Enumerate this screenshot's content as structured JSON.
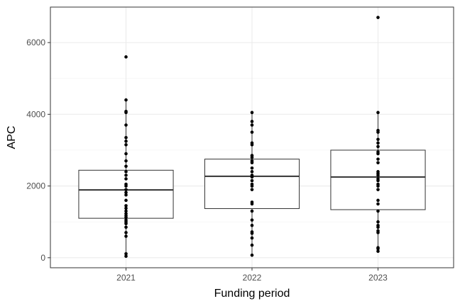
{
  "chart_data": {
    "type": "box",
    "title": "",
    "xlabel": "Funding period",
    "ylabel": "APC",
    "categories": [
      "2021",
      "2022",
      "2023"
    ],
    "ylim": [
      -280,
      6990
    ],
    "yticks": [
      0,
      2000,
      4000,
      6000
    ],
    "grid": true,
    "legend": "none",
    "boxes": [
      {
        "category": "2021",
        "q1": 1100,
        "median": 1890,
        "q3": 2440,
        "whisker_low": 40,
        "whisker_high": 4400
      },
      {
        "category": "2022",
        "q1": 1370,
        "median": 2270,
        "q3": 2750,
        "whisker_low": 70,
        "whisker_high": 4050
      },
      {
        "category": "2023",
        "q1": 1340,
        "median": 2250,
        "q3": 3000,
        "whisker_low": 180,
        "whisker_high": 4050
      }
    ],
    "points": [
      {
        "category": "2021",
        "values": [
          40,
          110,
          600,
          700,
          850,
          950,
          1000,
          1050,
          1120,
          1170,
          1230,
          1300,
          1380,
          1450,
          1600,
          1750,
          1820,
          1900,
          2000,
          2050,
          2200,
          2300,
          2400,
          2550,
          2700,
          2900,
          3150,
          3250,
          3350,
          3700,
          4050,
          4080,
          4400,
          5600
        ]
      },
      {
        "category": "2022",
        "values": [
          70,
          350,
          550,
          680,
          720,
          900,
          1050,
          1300,
          1500,
          1550,
          1900,
          2000,
          2050,
          2150,
          2250,
          2300,
          2400,
          2500,
          2650,
          2700,
          2800,
          2850,
          3150,
          3200,
          3500,
          3700,
          3800,
          4050
        ]
      },
      {
        "category": "2023",
        "values": [
          180,
          250,
          280,
          700,
          750,
          850,
          900,
          1000,
          1300,
          1500,
          1600,
          1900,
          2000,
          2050,
          2150,
          2200,
          2300,
          2350,
          2400,
          2650,
          2750,
          2900,
          2950,
          3100,
          3200,
          3300,
          3500,
          3550,
          4050,
          6700
        ]
      }
    ]
  }
}
